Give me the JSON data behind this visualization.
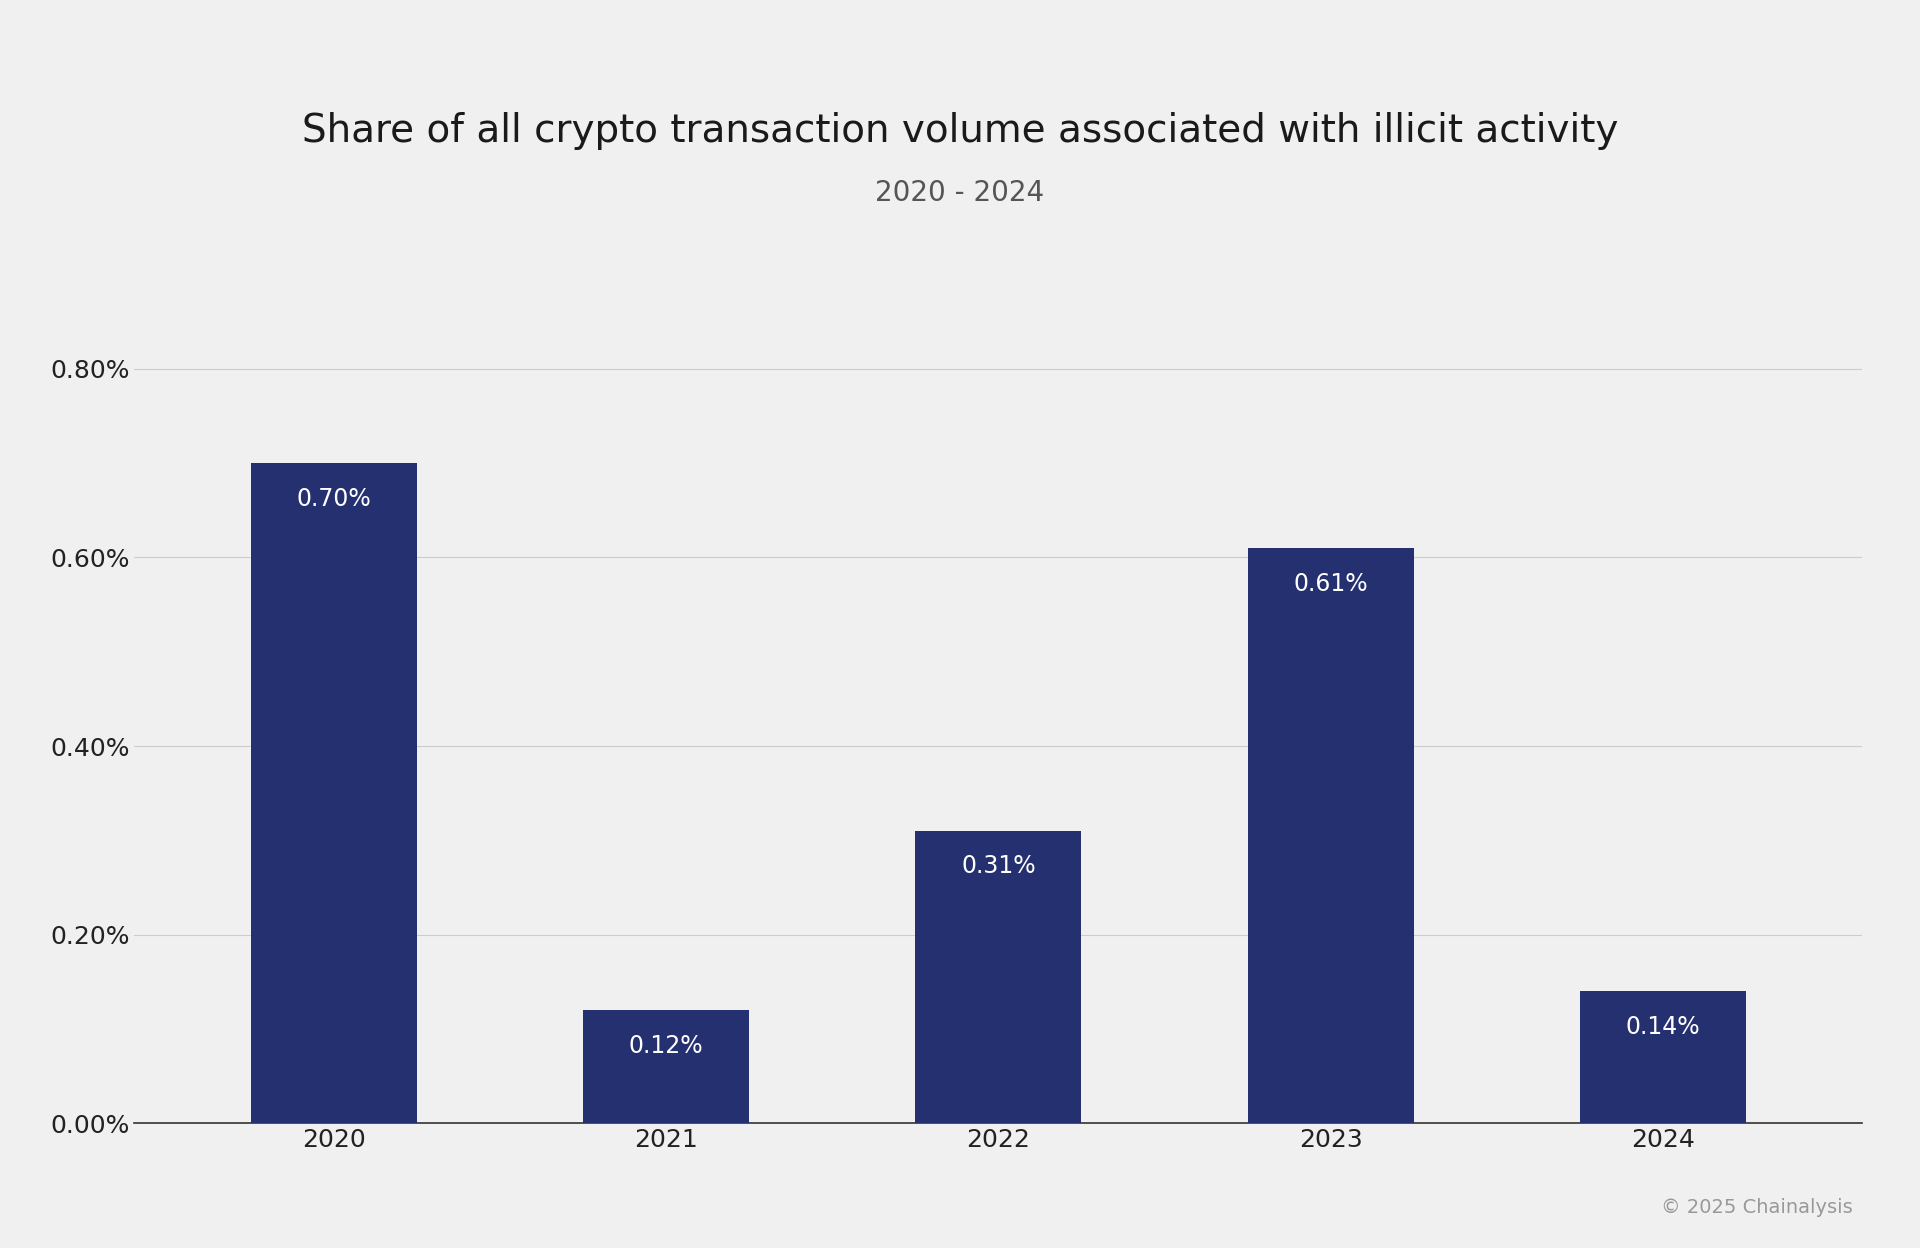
{
  "title": "Share of all crypto transaction volume associated with illicit activity",
  "subtitle": "2020 - 2024",
  "categories": [
    "2020",
    "2021",
    "2022",
    "2023",
    "2024"
  ],
  "values": [
    0.7,
    0.12,
    0.31,
    0.61,
    0.14
  ],
  "bar_color": "#253070",
  "background_color": "#f0f0f0",
  "title_fontsize": 28,
  "subtitle_fontsize": 20,
  "label_fontsize": 17,
  "tick_fontsize": 18,
  "ytick_labels": [
    "0.00%",
    "0.20%",
    "0.40%",
    "0.60%",
    "0.80%"
  ],
  "ytick_values": [
    0.0,
    0.2,
    0.4,
    0.6,
    0.8
  ],
  "ylim": [
    0,
    0.9
  ],
  "copyright_text": "© 2025 Chainalysis",
  "copyright_fontsize": 14
}
